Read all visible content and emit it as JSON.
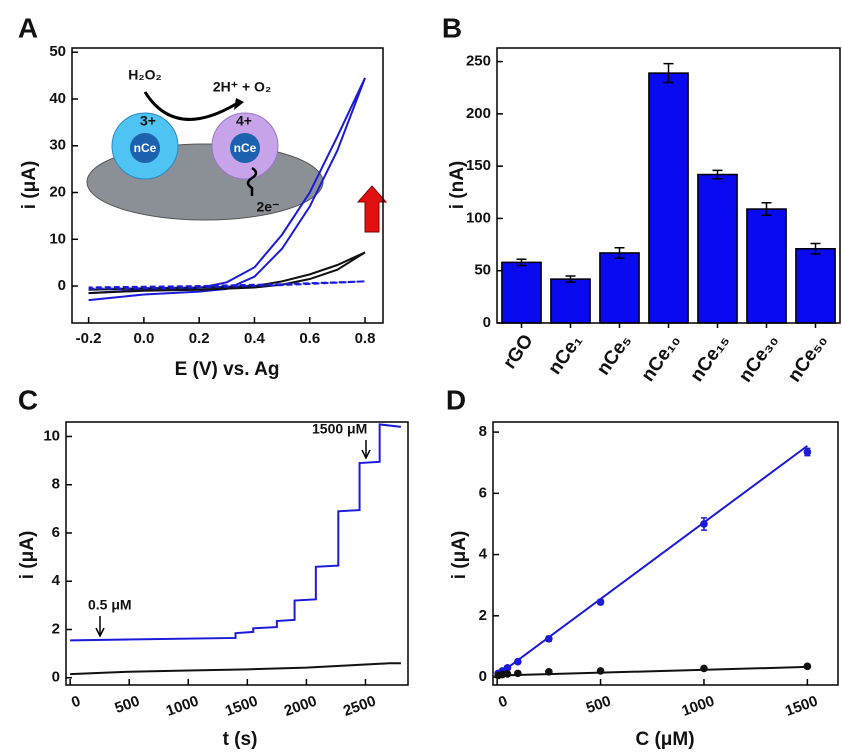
{
  "chart_data": [
    {
      "type": "line",
      "panel_label": "A",
      "x_label": "E (V) vs. Ag",
      "y_label": "i (μA)",
      "xlim": [
        -0.26,
        0.865
      ],
      "ylim": [
        -7.9,
        50.9
      ],
      "xticks": [
        -0.2,
        {
          "value": 0,
          "label": "0.0"
        },
        0.2,
        0.4,
        0.6,
        0.8
      ],
      "yticks": [
        0,
        10,
        20,
        30,
        40,
        50
      ],
      "series": [
        {
          "color": "#1a1ad8",
          "x": [
            -0.2,
            0,
            0.2,
            0.3,
            0.4,
            0.5,
            0.6,
            0.7,
            0.8,
            0.7,
            0.6,
            0.5,
            0.4,
            0.3,
            0.2,
            0,
            -0.2
          ],
          "values": [
            -3,
            -1.8,
            -1.2,
            -0.6,
            2,
            8,
            17,
            29,
            44.5,
            32,
            20,
            11,
            4,
            0.8,
            -0.4,
            -0.8,
            -1.5
          ]
        },
        {
          "color": "#111111",
          "x": [
            -0.2,
            0,
            0.2,
            0.4,
            0.5,
            0.6,
            0.7,
            0.8,
            0.7,
            0.6,
            0.5,
            0.4,
            0.2,
            0,
            -0.2
          ],
          "values": [
            -1.5,
            -1,
            -0.8,
            -0.3,
            0.3,
            1.5,
            3.5,
            7.2,
            4.5,
            2.5,
            1,
            0,
            -0.3,
            -0.5,
            -0.8
          ]
        },
        {
          "color": "#1a1ad8",
          "dashed": true,
          "x": [
            -0.2,
            0.2,
            0.5,
            0.8,
            0.5,
            0.2,
            -0.2
          ],
          "values": [
            -0.6,
            -0.3,
            0.2,
            1,
            0.4,
            0,
            -0.3
          ]
        }
      ],
      "annotations": [
        "H₂O₂",
        "2H⁺ + O₂",
        "3+",
        "4+",
        "nCe",
        "nCe",
        "2e⁻"
      ]
    },
    {
      "type": "bar",
      "panel_label": "B",
      "y_label": "i (nA)",
      "ylim": [
        0,
        263
      ],
      "yticks": [
        0,
        50,
        100,
        150,
        200,
        250
      ],
      "categories": [
        "rGO",
        "nCe₁",
        "nCe₅",
        "nCe₁₀",
        "nCe₁₅",
        "nCe₃₀",
        "nCe₅₀"
      ],
      "values": [
        58,
        42,
        67,
        239,
        142,
        109,
        71
      ],
      "errors": [
        3,
        3,
        5,
        9,
        4,
        6,
        5
      ],
      "color": "#0a0af0"
    },
    {
      "type": "line",
      "panel_label": "C",
      "x_label": "t (s)",
      "y_label": "i (μA)",
      "xlim": [
        -35,
        2860
      ],
      "ylim": [
        -0.3,
        10.6
      ],
      "xticks": [
        0,
        500,
        1000,
        1500,
        2000,
        2500
      ],
      "yticks": [
        0,
        2,
        4,
        6,
        8,
        10
      ],
      "series": [
        {
          "color": "#1a1ad8",
          "x": [
            0,
            1400,
            1400,
            1550,
            1550,
            1750,
            1750,
            1900,
            1900,
            2080,
            2080,
            2270,
            2270,
            2450,
            2450,
            2620,
            2620,
            2800
          ],
          "values": [
            1.55,
            1.65,
            1.85,
            1.9,
            2.05,
            2.1,
            2.35,
            2.4,
            3.2,
            3.25,
            4.6,
            4.65,
            6.9,
            6.95,
            8.9,
            8.95,
            10.5,
            10.4
          ]
        },
        {
          "color": "#111111",
          "x": [
            0,
            500,
            1000,
            1500,
            2000,
            2500,
            2700,
            2800
          ],
          "values": [
            0.15,
            0.25,
            0.3,
            0.35,
            0.42,
            0.55,
            0.6,
            0.6
          ]
        }
      ],
      "annotations": [
        "0.5 μM",
        "1500 μM"
      ]
    },
    {
      "type": "scatter",
      "panel_label": "D",
      "x_label": "C (μM)",
      "y_label": "i (μA)",
      "xlim": [
        -20,
        1648
      ],
      "ylim": [
        -0.26,
        8.33
      ],
      "xticks": [
        0,
        500,
        1000,
        1500
      ],
      "yticks": [
        0,
        2,
        4,
        6,
        8
      ],
      "x": [
        5,
        25,
        50,
        100,
        250,
        500,
        1000,
        1500
      ],
      "series": [
        {
          "color": "#1a1ad8",
          "values": [
            0.12,
            0.2,
            0.3,
            0.5,
            1.25,
            2.45,
            5.0,
            7.35
          ],
          "errors": [
            0.03,
            0.04,
            0.05,
            0.06,
            0.08,
            0.08,
            0.2,
            0.12
          ],
          "fit_x": [
            0,
            1500
          ],
          "fit_y": [
            0.05,
            7.55
          ]
        },
        {
          "color": "#111111",
          "values": [
            0.05,
            0.08,
            0.1,
            0.12,
            0.17,
            0.2,
            0.28,
            0.35
          ],
          "errors": [
            0.01,
            0.01,
            0.01,
            0.02,
            0.02,
            0.02,
            0.03,
            0.03
          ],
          "fit_x": [
            0,
            1500
          ],
          "fit_y": [
            0.05,
            0.33
          ]
        }
      ]
    }
  ]
}
